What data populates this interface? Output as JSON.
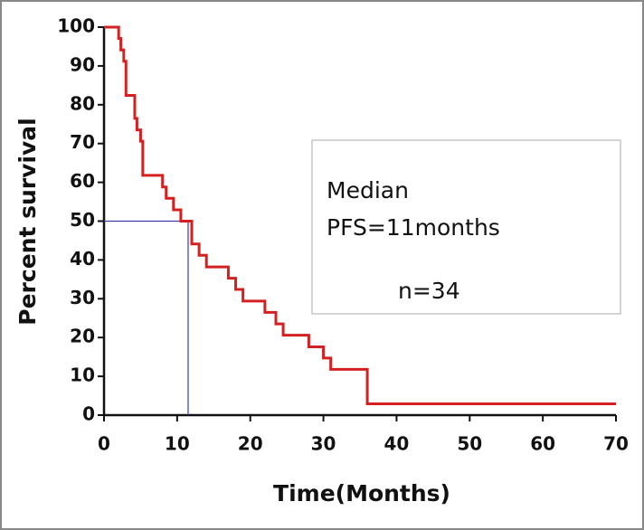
{
  "chart_data": {
    "type": "step",
    "xlabel": "Time(Months)",
    "ylabel": "Percent survival",
    "series": [
      {
        "color": "#d42020",
        "x": [
          0,
          2,
          2.3,
          2.7,
          3,
          4.2,
          4.5,
          5,
          5.3,
          8,
          8.5,
          9.5,
          10.5,
          12,
          13,
          14,
          17,
          18,
          19,
          22,
          23.5,
          24.5,
          28,
          30,
          31,
          36,
          70
        ],
        "values": [
          100,
          97.1,
          94.1,
          91.2,
          82.4,
          76.5,
          73.5,
          70.6,
          61.8,
          58.8,
          55.9,
          52.9,
          50,
          44.1,
          41.2,
          38.2,
          35.3,
          32.4,
          29.4,
          26.5,
          23.5,
          20.6,
          17.6,
          14.7,
          11.8,
          2.9,
          2.9
        ]
      }
    ],
    "median_line": {
      "x": 11.5,
      "y": 50,
      "color": "#3a3aa8"
    },
    "annotations": [
      "Median",
      "PFS=11months",
      "n=34"
    ],
    "xlim": [
      0,
      70
    ],
    "xticks": [
      0,
      10,
      20,
      30,
      40,
      50,
      60,
      70
    ],
    "ylim": [
      0,
      100
    ],
    "yticks": [
      0,
      10,
      20,
      30,
      40,
      50,
      60,
      70,
      80,
      90,
      100
    ]
  }
}
